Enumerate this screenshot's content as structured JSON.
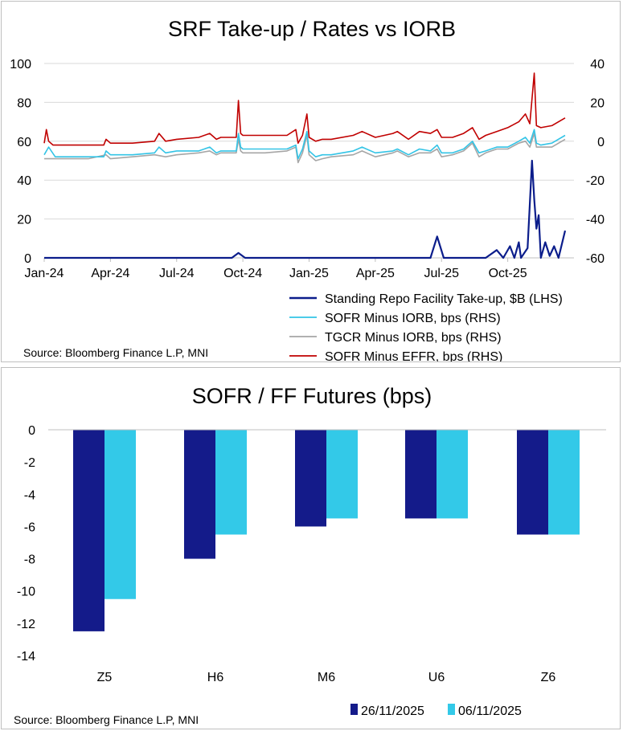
{
  "chart_data": [
    {
      "type": "line",
      "title": "SRF Take-up / Rates vs IORB",
      "source": "Source: Bloomberg Finance L.P, MNI",
      "x_tick_labels": [
        "Jan-24",
        "Apr-24",
        "Jul-24",
        "Oct-24",
        "Jan-25",
        "Apr-25",
        "Jul-25",
        "Oct-25"
      ],
      "x_range_months": [
        0,
        24
      ],
      "ylim_left": [
        0,
        100
      ],
      "ylim_right": [
        -60,
        40
      ],
      "y_ticks_left": [
        "0",
        "20",
        "40",
        "60",
        "80",
        "100"
      ],
      "y_ticks_right": [
        "-60",
        "-40",
        "-20",
        "0",
        "20",
        "40"
      ],
      "grid": true,
      "legend_position": "bottom-right",
      "series": [
        {
          "name": "Standing Repo Facility Take-up, $B (LHS)",
          "axis": "left",
          "color": "#0b1d8b",
          "points": [
            [
              0,
              0
            ],
            [
              2,
              0
            ],
            [
              4,
              0
            ],
            [
              6,
              0
            ],
            [
              8.5,
              0
            ],
            [
              8.8,
              2.5
            ],
            [
              9.1,
              0
            ],
            [
              10,
              0
            ],
            [
              12,
              0
            ],
            [
              14,
              0
            ],
            [
              16,
              0
            ],
            [
              17.5,
              0
            ],
            [
              17.8,
              11
            ],
            [
              18.1,
              0
            ],
            [
              20,
              0
            ],
            [
              20.5,
              4
            ],
            [
              20.8,
              0
            ],
            [
              21.1,
              6
            ],
            [
              21.3,
              0
            ],
            [
              21.5,
              8
            ],
            [
              21.6,
              0
            ],
            [
              21.9,
              5
            ],
            [
              22.1,
              50
            ],
            [
              22.2,
              30
            ],
            [
              22.3,
              15
            ],
            [
              22.4,
              22
            ],
            [
              22.5,
              0
            ],
            [
              22.7,
              8
            ],
            [
              22.9,
              1
            ],
            [
              23.1,
              6
            ],
            [
              23.3,
              0
            ],
            [
              23.6,
              14
            ]
          ]
        },
        {
          "name": "SOFR Minus IORB, bps (RHS)",
          "axis": "right",
          "color": "#33c4e6",
          "points": [
            [
              0,
              -7
            ],
            [
              0.2,
              -3
            ],
            [
              0.5,
              -8
            ],
            [
              1,
              -8
            ],
            [
              2,
              -8
            ],
            [
              2.7,
              -8
            ],
            [
              2.8,
              -5
            ],
            [
              3,
              -7
            ],
            [
              4,
              -7
            ],
            [
              5,
              -6
            ],
            [
              5.2,
              -3
            ],
            [
              5.5,
              -6
            ],
            [
              6,
              -5
            ],
            [
              7,
              -5
            ],
            [
              7.5,
              -3
            ],
            [
              7.8,
              -6
            ],
            [
              8,
              -5
            ],
            [
              8.7,
              -5
            ],
            [
              8.8,
              4
            ],
            [
              8.9,
              -3
            ],
            [
              9,
              -4
            ],
            [
              10,
              -4
            ],
            [
              11,
              -4
            ],
            [
              11.4,
              -2
            ],
            [
              11.5,
              -9
            ],
            [
              11.7,
              -4
            ],
            [
              11.9,
              5
            ],
            [
              12,
              -5
            ],
            [
              12.3,
              -8
            ],
            [
              12.6,
              -7
            ],
            [
              13,
              -7
            ],
            [
              14,
              -5
            ],
            [
              14.4,
              -3
            ],
            [
              15,
              -6
            ],
            [
              15.8,
              -5
            ],
            [
              16,
              -4
            ],
            [
              16.5,
              -7
            ],
            [
              17,
              -4
            ],
            [
              17.5,
              -5
            ],
            [
              17.8,
              -2
            ],
            [
              18,
              -6
            ],
            [
              18.5,
              -6
            ],
            [
              19,
              -4
            ],
            [
              19.4,
              0
            ],
            [
              19.7,
              -6
            ],
            [
              20,
              -5
            ],
            [
              20.5,
              -3
            ],
            [
              21,
              -3
            ],
            [
              21.5,
              0
            ],
            [
              21.8,
              2
            ],
            [
              22,
              -1
            ],
            [
              22.2,
              6
            ],
            [
              22.3,
              -1
            ],
            [
              22.5,
              -2
            ],
            [
              23,
              -1
            ],
            [
              23.6,
              3
            ]
          ]
        },
        {
          "name": "TGCR Minus IORB, bps (RHS)",
          "axis": "right",
          "color": "#a6a6a6",
          "points": [
            [
              0,
              -9
            ],
            [
              0.5,
              -9
            ],
            [
              1,
              -9
            ],
            [
              2,
              -9
            ],
            [
              2.8,
              -7
            ],
            [
              3,
              -9
            ],
            [
              4,
              -8
            ],
            [
              5,
              -7
            ],
            [
              5.5,
              -8
            ],
            [
              6,
              -7
            ],
            [
              7,
              -6
            ],
            [
              7.5,
              -5
            ],
            [
              7.8,
              -7
            ],
            [
              8,
              -6
            ],
            [
              8.7,
              -6
            ],
            [
              8.8,
              1
            ],
            [
              8.9,
              -5
            ],
            [
              9,
              -6
            ],
            [
              10,
              -6
            ],
            [
              11,
              -5
            ],
            [
              11.4,
              -3
            ],
            [
              11.5,
              -11
            ],
            [
              11.7,
              -6
            ],
            [
              11.9,
              3
            ],
            [
              12,
              -7
            ],
            [
              12.3,
              -10
            ],
            [
              12.6,
              -9
            ],
            [
              13,
              -8
            ],
            [
              14,
              -7
            ],
            [
              14.4,
              -5
            ],
            [
              15,
              -8
            ],
            [
              15.8,
              -6
            ],
            [
              16,
              -5
            ],
            [
              16.5,
              -8
            ],
            [
              17,
              -6
            ],
            [
              17.5,
              -6
            ],
            [
              17.8,
              -4
            ],
            [
              18,
              -8
            ],
            [
              18.5,
              -7
            ],
            [
              19,
              -5
            ],
            [
              19.4,
              -1
            ],
            [
              19.7,
              -8
            ],
            [
              20,
              -6
            ],
            [
              20.5,
              -4
            ],
            [
              21,
              -4
            ],
            [
              21.5,
              -1
            ],
            [
              21.8,
              0
            ],
            [
              22,
              -3
            ],
            [
              22.2,
              4
            ],
            [
              22.3,
              -3
            ],
            [
              22.5,
              -3
            ],
            [
              23,
              -3
            ],
            [
              23.6,
              1
            ]
          ]
        },
        {
          "name": "SOFR Minus EFFR, bps (RHS)",
          "axis": "right",
          "color": "#c00000",
          "points": [
            [
              0,
              -1
            ],
            [
              0.1,
              6
            ],
            [
              0.2,
              0
            ],
            [
              0.4,
              -2
            ],
            [
              1,
              -2
            ],
            [
              2,
              -2
            ],
            [
              2.7,
              -2
            ],
            [
              2.8,
              1
            ],
            [
              3,
              -1
            ],
            [
              4,
              -1
            ],
            [
              5,
              0
            ],
            [
              5.2,
              4
            ],
            [
              5.5,
              0
            ],
            [
              6,
              1
            ],
            [
              7,
              2
            ],
            [
              7.5,
              4
            ],
            [
              7.8,
              1
            ],
            [
              8,
              2
            ],
            [
              8.7,
              2
            ],
            [
              8.8,
              21
            ],
            [
              8.9,
              4
            ],
            [
              9,
              3
            ],
            [
              10,
              3
            ],
            [
              11,
              3
            ],
            [
              11.4,
              6
            ],
            [
              11.5,
              -1
            ],
            [
              11.7,
              3
            ],
            [
              11.9,
              14
            ],
            [
              12,
              2
            ],
            [
              12.3,
              0
            ],
            [
              12.6,
              1
            ],
            [
              13,
              1
            ],
            [
              14,
              3
            ],
            [
              14.4,
              5
            ],
            [
              15,
              2
            ],
            [
              15.8,
              4
            ],
            [
              16,
              5
            ],
            [
              16.5,
              1
            ],
            [
              17,
              5
            ],
            [
              17.5,
              4
            ],
            [
              17.8,
              6
            ],
            [
              18,
              2
            ],
            [
              18.5,
              2
            ],
            [
              19,
              4
            ],
            [
              19.4,
              7
            ],
            [
              19.7,
              1
            ],
            [
              20,
              3
            ],
            [
              20.5,
              5
            ],
            [
              21,
              7
            ],
            [
              21.5,
              10
            ],
            [
              21.8,
              14
            ],
            [
              22,
              9
            ],
            [
              22.2,
              35
            ],
            [
              22.3,
              8
            ],
            [
              22.5,
              7
            ],
            [
              23,
              8
            ],
            [
              23.6,
              12
            ]
          ]
        }
      ]
    },
    {
      "type": "bar",
      "title": "SOFR / FF Futures (bps)",
      "source": "Source: Bloomberg Finance L.P, MNI",
      "categories": [
        "Z5",
        "H6",
        "M6",
        "U6",
        "Z6"
      ],
      "ylim": [
        -14,
        0
      ],
      "y_ticks": [
        "0",
        "-2",
        "-4",
        "-6",
        "-8",
        "-10",
        "-12",
        "-14"
      ],
      "grid": false,
      "legend_position": "bottom-right",
      "series": [
        {
          "name": "26/11/2025",
          "color": "#141b8a",
          "values": [
            -12.5,
            -8,
            -6,
            -5.5,
            -6.5
          ]
        },
        {
          "name": "06/11/2025",
          "color": "#33c9e8",
          "values": [
            -10.5,
            -6.5,
            -5.5,
            -5.5,
            -6.5
          ]
        }
      ]
    }
  ]
}
